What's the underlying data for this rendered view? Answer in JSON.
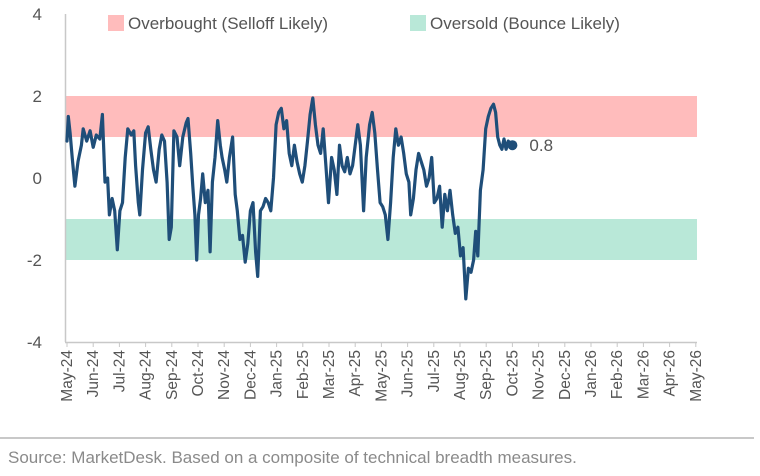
{
  "chart_data": {
    "type": "line",
    "title": "",
    "xlabel": "",
    "ylabel": "",
    "ylim": [
      -4,
      4
    ],
    "yticks": [
      "4",
      "2",
      "0",
      "-2",
      "-4"
    ],
    "xticks": [
      "May-24",
      "Jun-24",
      "Jul-24",
      "Aug-24",
      "Sep-24",
      "Oct-24",
      "Nov-24",
      "Dec-24",
      "Jan-25",
      "Feb-25",
      "Mar-25",
      "Apr-25",
      "May-25",
      "Jun-25",
      "Jul-25",
      "Aug-25",
      "Sep-25",
      "Oct-25",
      "Nov-25",
      "Dec-25",
      "Jan-26",
      "Feb-26",
      "Mar-26",
      "Apr-26",
      "May-26"
    ],
    "bands": [
      {
        "name": "Overbought (Selloff Likely)",
        "from": 1,
        "to": 2,
        "color": "#ffbcbc"
      },
      {
        "name": "Oversold (Bounce Likely)",
        "from": -2,
        "to": -1,
        "color": "#b9e8d8"
      }
    ],
    "legend": {
      "position": "top",
      "entries": [
        "Overbought (Selloff Likely)",
        "Oversold (Bounce Likely)"
      ]
    },
    "grid": false,
    "series": [
      {
        "color": "#1f4e79",
        "end_label": "0.8",
        "points": [
          [
            0.0,
            0.9
          ],
          [
            0.05,
            1.5
          ],
          [
            0.12,
            1.1
          ],
          [
            0.2,
            0.5
          ],
          [
            0.3,
            -0.2
          ],
          [
            0.42,
            0.4
          ],
          [
            0.55,
            0.8
          ],
          [
            0.62,
            1.2
          ],
          [
            0.75,
            0.9
          ],
          [
            0.88,
            1.15
          ],
          [
            1.0,
            0.75
          ],
          [
            1.12,
            1.05
          ],
          [
            1.25,
            0.95
          ],
          [
            1.35,
            1.55
          ],
          [
            1.45,
            -0.1
          ],
          [
            1.55,
            0.0
          ],
          [
            1.62,
            -0.9
          ],
          [
            1.72,
            -0.5
          ],
          [
            1.82,
            -0.8
          ],
          [
            1.92,
            -1.75
          ],
          [
            2.02,
            -0.8
          ],
          [
            2.12,
            -0.6
          ],
          [
            2.22,
            0.5
          ],
          [
            2.32,
            1.2
          ],
          [
            2.45,
            1.05
          ],
          [
            2.55,
            1.15
          ],
          [
            2.62,
            0.3
          ],
          [
            2.72,
            -0.6
          ],
          [
            2.78,
            -0.9
          ],
          [
            2.88,
            0.2
          ],
          [
            3.0,
            1.1
          ],
          [
            3.1,
            1.25
          ],
          [
            3.2,
            0.7
          ],
          [
            3.3,
            0.2
          ],
          [
            3.4,
            -0.1
          ],
          [
            3.52,
            0.7
          ],
          [
            3.62,
            1.05
          ],
          [
            3.72,
            0.9
          ],
          [
            3.82,
            -0.1
          ],
          [
            3.9,
            -1.5
          ],
          [
            3.98,
            -1.2
          ],
          [
            4.08,
            1.15
          ],
          [
            4.2,
            1.0
          ],
          [
            4.3,
            0.3
          ],
          [
            4.42,
            1.0
          ],
          [
            4.55,
            1.35
          ],
          [
            4.62,
            1.45
          ],
          [
            4.72,
            0.6
          ],
          [
            4.8,
            -0.2
          ],
          [
            4.88,
            -0.9
          ],
          [
            4.95,
            -2.0
          ],
          [
            5.02,
            -0.9
          ],
          [
            5.1,
            -0.5
          ],
          [
            5.18,
            0.1
          ],
          [
            5.28,
            -0.6
          ],
          [
            5.38,
            -0.3
          ],
          [
            5.46,
            -1.8
          ],
          [
            5.55,
            -0.1
          ],
          [
            5.65,
            0.5
          ],
          [
            5.75,
            1.4
          ],
          [
            5.85,
            0.8
          ],
          [
            5.92,
            0.5
          ],
          [
            6.02,
            0.2
          ],
          [
            6.1,
            -0.1
          ],
          [
            6.2,
            0.5
          ],
          [
            6.32,
            1.0
          ],
          [
            6.42,
            -0.4
          ],
          [
            6.5,
            -0.8
          ],
          [
            6.6,
            -1.5
          ],
          [
            6.7,
            -1.4
          ],
          [
            6.8,
            -2.05
          ],
          [
            6.9,
            -1.6
          ],
          [
            7.0,
            -0.8
          ],
          [
            7.1,
            -0.6
          ],
          [
            7.2,
            -1.8
          ],
          [
            7.28,
            -2.4
          ],
          [
            7.38,
            -0.8
          ],
          [
            7.48,
            -0.7
          ],
          [
            7.58,
            -0.5
          ],
          [
            7.68,
            -0.6
          ],
          [
            7.78,
            -0.8
          ],
          [
            7.88,
            0.0
          ],
          [
            7.98,
            1.3
          ],
          [
            8.08,
            1.6
          ],
          [
            8.18,
            1.7
          ],
          [
            8.28,
            1.2
          ],
          [
            8.38,
            1.4
          ],
          [
            8.48,
            0.6
          ],
          [
            8.58,
            0.3
          ],
          [
            8.68,
            0.8
          ],
          [
            8.78,
            0.4
          ],
          [
            8.88,
            0.1
          ],
          [
            8.98,
            -0.1
          ],
          [
            9.08,
            0.3
          ],
          [
            9.18,
            0.9
          ],
          [
            9.28,
            1.55
          ],
          [
            9.38,
            1.95
          ],
          [
            9.48,
            1.3
          ],
          [
            9.58,
            0.8
          ],
          [
            9.68,
            0.6
          ],
          [
            9.78,
            1.2
          ],
          [
            9.88,
            0.3
          ],
          [
            9.98,
            -0.6
          ],
          [
            10.1,
            0.5
          ],
          [
            10.2,
            0.2
          ],
          [
            10.3,
            -0.4
          ],
          [
            10.4,
            0.8
          ],
          [
            10.5,
            0.3
          ],
          [
            10.6,
            0.15
          ],
          [
            10.7,
            0.5
          ],
          [
            10.8,
            0.1
          ],
          [
            10.9,
            0.3
          ],
          [
            11.0,
            0.8
          ],
          [
            11.1,
            1.3
          ],
          [
            11.2,
            0.8
          ],
          [
            11.32,
            -0.8
          ],
          [
            11.42,
            0.5
          ],
          [
            11.55,
            1.3
          ],
          [
            11.65,
            1.6
          ],
          [
            11.75,
            1.1
          ],
          [
            11.85,
            0.2
          ],
          [
            11.95,
            -0.6
          ],
          [
            12.05,
            -0.7
          ],
          [
            12.15,
            -0.9
          ],
          [
            12.25,
            -1.5
          ],
          [
            12.35,
            -0.6
          ],
          [
            12.45,
            0.5
          ],
          [
            12.55,
            1.2
          ],
          [
            12.65,
            0.8
          ],
          [
            12.75,
            1.0
          ],
          [
            12.85,
            0.6
          ],
          [
            12.95,
            0.1
          ],
          [
            13.05,
            -0.1
          ],
          [
            13.12,
            -0.9
          ],
          [
            13.22,
            -0.5
          ],
          [
            13.32,
            0.2
          ],
          [
            13.42,
            0.6
          ],
          [
            13.52,
            0.4
          ],
          [
            13.62,
            0.2
          ],
          [
            13.72,
            -0.2
          ],
          [
            13.82,
            0.0
          ],
          [
            13.92,
            0.5
          ],
          [
            14.02,
            -0.6
          ],
          [
            14.12,
            -0.5
          ],
          [
            14.22,
            -0.2
          ],
          [
            14.32,
            -1.2
          ],
          [
            14.42,
            -0.4
          ],
          [
            14.52,
            -0.8
          ],
          [
            14.62,
            -0.3
          ],
          [
            14.72,
            -0.9
          ],
          [
            14.82,
            -1.35
          ],
          [
            14.92,
            -1.2
          ],
          [
            15.02,
            -1.9
          ],
          [
            15.12,
            -1.7
          ],
          [
            15.22,
            -2.95
          ],
          [
            15.32,
            -2.2
          ],
          [
            15.42,
            -2.3
          ],
          [
            15.52,
            -2.0
          ],
          [
            15.6,
            -1.3
          ],
          [
            15.68,
            -1.9
          ],
          [
            15.78,
            -0.3
          ],
          [
            15.88,
            0.2
          ],
          [
            15.98,
            1.2
          ],
          [
            16.08,
            1.5
          ],
          [
            16.18,
            1.7
          ],
          [
            16.28,
            1.8
          ],
          [
            16.36,
            1.6
          ],
          [
            16.44,
            1.0
          ],
          [
            16.52,
            0.8
          ],
          [
            16.6,
            0.7
          ],
          [
            16.68,
            0.95
          ],
          [
            16.76,
            0.7
          ],
          [
            16.84,
            0.9
          ],
          [
            16.92,
            0.85
          ],
          [
            17.0,
            0.8
          ]
        ]
      }
    ],
    "annotations": [
      "0.8"
    ]
  },
  "source_text": "Source: MarketDesk. Based on a composite of technical breadth measures."
}
